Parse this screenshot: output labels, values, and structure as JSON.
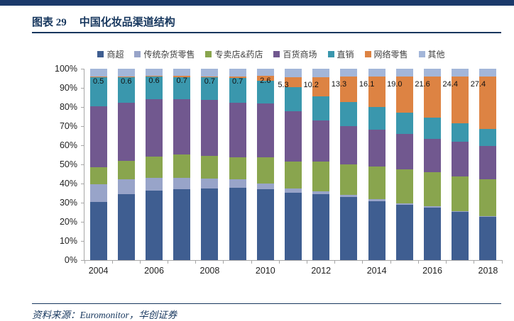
{
  "page": {
    "figure_label": "图表 29",
    "title": "中国化妆品渠道结构",
    "source": "资料来源：Euromonitor，华创证券",
    "accent_color": "#1B3A6B",
    "title_color": "#17375E"
  },
  "chart_data": {
    "type": "bar",
    "subtype": "stacked-100-percent",
    "title": "中国化妆品渠道结构",
    "categories": [
      2004,
      2005,
      2006,
      2007,
      2008,
      2009,
      2010,
      2011,
      2012,
      2013,
      2014,
      2015,
      2016,
      2017,
      2018
    ],
    "x_tick_labels": [
      "2004",
      "2006",
      "2008",
      "2010",
      "2012",
      "2014",
      "2016",
      "2018"
    ],
    "y_ticks_top_down": [
      "100%",
      "90%",
      "80%",
      "70%",
      "60%",
      "50%",
      "40%",
      "30%",
      "20%",
      "10%",
      "0%"
    ],
    "ylim": [
      0,
      100
    ],
    "grid": false,
    "legend_position": "top",
    "value_label_series": "网络零售",
    "value_labels": [
      "0.5",
      "0.6",
      "0.6",
      "0.7",
      "0.7",
      "0.7",
      "2.6",
      "5.3",
      "10.2",
      "13.3",
      "16.1",
      "19.0",
      "21.6",
      "24.4",
      "27.4"
    ],
    "series": [
      {
        "name": "商超",
        "color": "#3F5E91",
        "values": [
          30.4,
          34.3,
          36.3,
          37.2,
          37.5,
          37.7,
          36.9,
          35.3,
          34.4,
          33.0,
          30.7,
          28.8,
          27.4,
          25.2,
          22.6
        ]
      },
      {
        "name": "传统杂货零售",
        "color": "#98A4C9",
        "values": [
          9.2,
          7.8,
          6.5,
          5.6,
          5.0,
          4.4,
          3.1,
          2.0,
          1.7,
          1.2,
          1.0,
          0.8,
          0.6,
          0.5,
          0.3
        ]
      },
      {
        "name": "专卖店&药店",
        "color": "#89A54E",
        "values": [
          8.8,
          9.9,
          11.1,
          12.4,
          11.8,
          11.7,
          13.8,
          14.2,
          15.5,
          15.8,
          17.3,
          17.8,
          18.0,
          17.9,
          19.5
        ]
      },
      {
        "name": "百货商场",
        "color": "#71588F",
        "values": [
          32.0,
          30.2,
          30.2,
          28.9,
          29.4,
          28.6,
          28.0,
          26.4,
          21.5,
          20.0,
          19.2,
          18.6,
          17.3,
          18.1,
          17.3
        ]
      },
      {
        "name": "直销",
        "color": "#3A97AD",
        "values": [
          15.1,
          13.2,
          11.7,
          11.5,
          11.7,
          12.9,
          11.9,
          12.5,
          12.4,
          12.5,
          11.7,
          11.0,
          11.1,
          9.9,
          8.7
        ]
      },
      {
        "name": "网络零售",
        "color": "#DD8343",
        "values": [
          0.5,
          0.6,
          0.6,
          0.7,
          0.7,
          0.7,
          2.6,
          5.3,
          10.2,
          13.3,
          16.1,
          19.0,
          21.6,
          24.4,
          27.4
        ]
      },
      {
        "name": "其他",
        "color": "#A3B6D9",
        "values": [
          4.0,
          4.0,
          3.6,
          3.7,
          3.9,
          4.0,
          3.7,
          4.3,
          4.3,
          4.2,
          4.0,
          4.0,
          4.0,
          4.0,
          4.2
        ]
      }
    ]
  }
}
